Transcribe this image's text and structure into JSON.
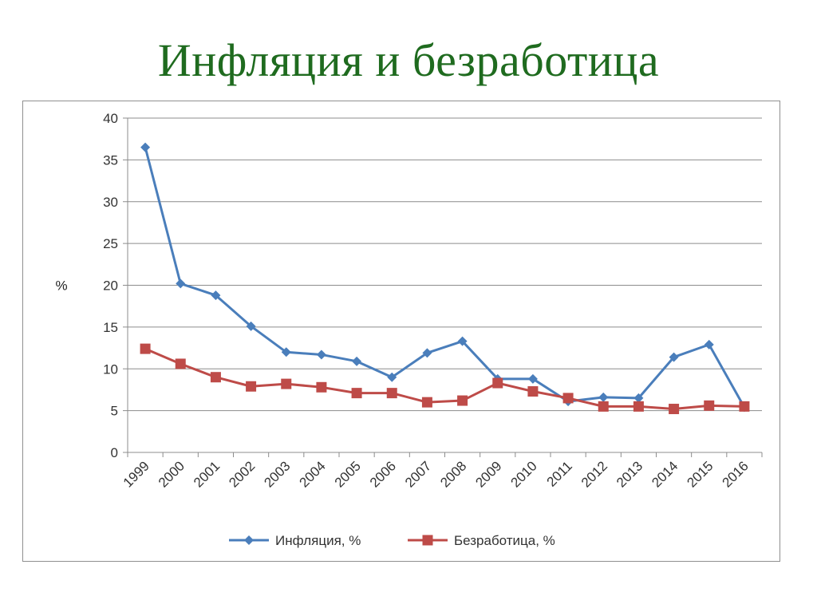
{
  "title": "Инфляция и безработица",
  "chart_data": {
    "type": "line",
    "ylabel": "%",
    "xlabel": "",
    "ylim": [
      0,
      40
    ],
    "yticks": [
      0,
      5,
      10,
      15,
      20,
      25,
      30,
      35,
      40
    ],
    "grid": true,
    "legend_position": "bottom",
    "categories": [
      "1999",
      "2000",
      "2001",
      "2002",
      "2003",
      "2004",
      "2005",
      "2006",
      "2007",
      "2008",
      "2009",
      "2010",
      "2011",
      "2012",
      "2013",
      "2014",
      "2015",
      "2016"
    ],
    "series": [
      {
        "name": "Инфляция, %",
        "color": "#4a7ebb",
        "marker": "diamond",
        "values": [
          36.5,
          20.2,
          18.8,
          15.1,
          12.0,
          11.7,
          10.9,
          9.0,
          11.9,
          13.3,
          8.8,
          8.8,
          6.1,
          6.6,
          6.5,
          11.4,
          12.9,
          5.4
        ]
      },
      {
        "name": "Безработица, %",
        "color": "#be4b48",
        "marker": "square",
        "values": [
          12.4,
          10.6,
          9.0,
          7.9,
          8.2,
          7.8,
          7.1,
          7.1,
          6.0,
          6.2,
          8.3,
          7.3,
          6.5,
          5.5,
          5.5,
          5.2,
          5.6,
          5.5
        ]
      }
    ]
  }
}
